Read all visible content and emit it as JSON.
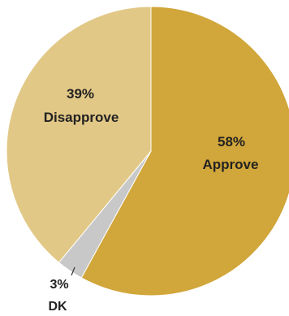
{
  "chart_data": {
    "type": "pie",
    "title": "",
    "start_angle_deg": 0,
    "direction": "clockwise",
    "slices": [
      {
        "label": "Approve",
        "value": 58,
        "value_label": "58%",
        "color": "#D1A63A"
      },
      {
        "label": "DK",
        "value": 3,
        "value_label": "3%",
        "color": "#C8C8C8"
      },
      {
        "label": "Disapprove",
        "value": 39,
        "value_label": "39%",
        "color": "#E2C886"
      }
    ]
  }
}
